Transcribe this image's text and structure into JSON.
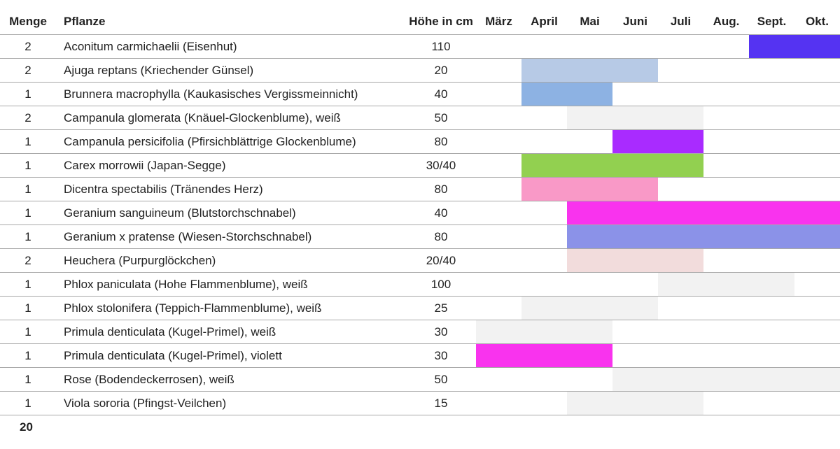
{
  "table": {
    "headers": {
      "qty": "Menge",
      "name": "Pflanze",
      "height": "Höhe in cm",
      "months": [
        "März",
        "April",
        "Mai",
        "Juni",
        "Juli",
        "Aug.",
        "Sept.",
        "Okt."
      ]
    },
    "rows": [
      {
        "qty": "2",
        "name": "Aconitum carmichaelii (Eisenhut)",
        "height": "110",
        "bloom": [
          6,
          7
        ],
        "color": "#5533f2"
      },
      {
        "qty": "2",
        "name": "Ajuga reptans (Kriechender Günsel)",
        "height": "20",
        "bloom": [
          1,
          3
        ],
        "color": "#b7cae6"
      },
      {
        "qty": "1",
        "name": "Brunnera macrophylla (Kaukasisches Vergissmeinnicht)",
        "height": "40",
        "bloom": [
          1,
          2
        ],
        "color": "#8db2e3"
      },
      {
        "qty": "2",
        "name": "Campanula glomerata (Knäuel-Glockenblume), weiß",
        "height": "50",
        "bloom": [
          2,
          4
        ],
        "color": "#f2f2f2"
      },
      {
        "qty": "1",
        "name": "Campanula persicifolia (Pfirsichblättrige Glockenblume)",
        "height": "80",
        "bloom": [
          3,
          4
        ],
        "color": "#a92bff"
      },
      {
        "qty": "1",
        "name": "Carex morrowii (Japan-Segge)",
        "height": "30/40",
        "bloom": [
          1,
          4
        ],
        "color": "#92d050"
      },
      {
        "qty": "1",
        "name": "Dicentra spectabilis (Tränendes Herz)",
        "height": "80",
        "bloom": [
          1,
          3
        ],
        "color": "#f999c7"
      },
      {
        "qty": "1",
        "name": "Geranium sanguineum (Blutstorchschnabel)",
        "height": "40",
        "bloom": [
          2,
          7
        ],
        "color": "#f933ee"
      },
      {
        "qty": "1",
        "name": "Geranium x pratense (Wiesen-Storchschnabel)",
        "height": "80",
        "bloom": [
          2,
          7
        ],
        "color": "#8b92e8"
      },
      {
        "qty": "2",
        "name": "Heuchera (Purpurglöckchen)",
        "height": "20/40",
        "bloom": [
          2,
          4
        ],
        "color": "#f2dcdc"
      },
      {
        "qty": "1",
        "name": "Phlox paniculata (Hohe Flammenblume), weiß",
        "height": "100",
        "bloom": [
          4,
          6
        ],
        "color": "#f2f2f2"
      },
      {
        "qty": "1",
        "name": "Phlox stolonifera (Teppich-Flammenblume), weiß",
        "height": "25",
        "bloom": [
          1,
          3
        ],
        "color": "#f2f2f2"
      },
      {
        "qty": "1",
        "name": "Primula denticulata (Kugel-Primel), weiß",
        "height": "30",
        "bloom": [
          0,
          2
        ],
        "color": "#f2f2f2"
      },
      {
        "qty": "1",
        "name": "Primula denticulata (Kugel-Primel), violett",
        "height": "30",
        "bloom": [
          0,
          2
        ],
        "color": "#f933ee"
      },
      {
        "qty": "1",
        "name": "Rose (Bodendeckerrosen), weiß",
        "height": "50",
        "bloom": [
          3,
          7
        ],
        "color": "#f2f2f2"
      },
      {
        "qty": "1",
        "name": "Viola sororia (Pfingst-Veilchen)",
        "height": "15",
        "bloom": [
          2,
          4
        ],
        "color": "#f2f2f2"
      }
    ]
  },
  "footer": {
    "total": "20"
  }
}
